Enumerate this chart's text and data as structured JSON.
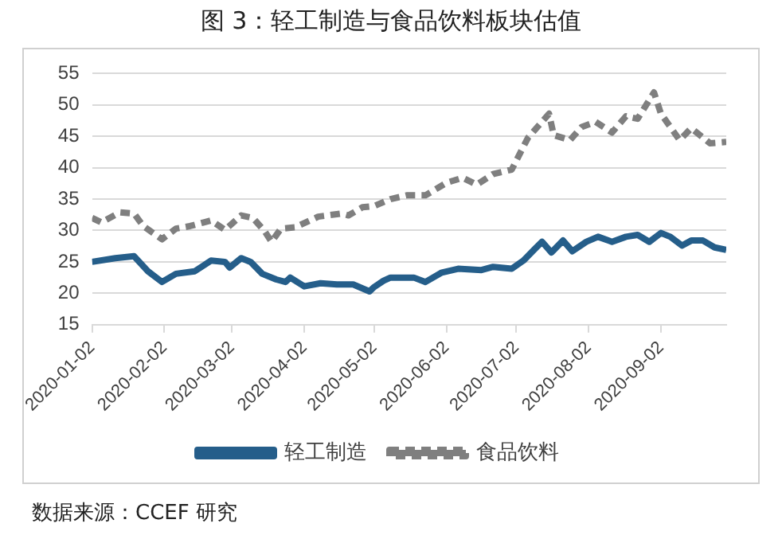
{
  "chart_data": {
    "type": "line",
    "title": "图 3：轻工制造与食品饮料板块估值",
    "xlim": [
      "2020-01-02",
      "2020-09-30"
    ],
    "xticks": [
      "2020-01-02",
      "2020-02-02",
      "2020-03-02",
      "2020-04-02",
      "2020-05-02",
      "2020-06-02",
      "2020-07-02",
      "2020-08-02",
      "2020-09-02"
    ],
    "ylim": [
      15,
      55
    ],
    "yticks": [
      15,
      20,
      25,
      30,
      35,
      40,
      45,
      50,
      55
    ],
    "grid": "y",
    "legend": "bottom",
    "marker": "none",
    "series": [
      {
        "name": "轻工制造",
        "color": "#255e8a",
        "line_style": "solid",
        "x": [
          "2020-01-02",
          "2020-01-12",
          "2020-01-20",
          "2020-01-26",
          "2020-02-01",
          "2020-02-07",
          "2020-02-15",
          "2020-02-22",
          "2020-02-28",
          "2020-03-01",
          "2020-03-06",
          "2020-03-10",
          "2020-03-15",
          "2020-03-21",
          "2020-03-25",
          "2020-03-27",
          "2020-04-02",
          "2020-04-09",
          "2020-04-16",
          "2020-04-23",
          "2020-04-30",
          "2020-05-02",
          "2020-05-06",
          "2020-05-09",
          "2020-05-19",
          "2020-05-24",
          "2020-05-31",
          "2020-06-07",
          "2020-06-17",
          "2020-06-22",
          "2020-06-30",
          "2020-07-05",
          "2020-07-10",
          "2020-07-13",
          "2020-07-17",
          "2020-07-22",
          "2020-07-26",
          "2020-08-01",
          "2020-08-06",
          "2020-08-12",
          "2020-08-18",
          "2020-08-23",
          "2020-08-28",
          "2020-09-02",
          "2020-09-06",
          "2020-09-11",
          "2020-09-15",
          "2020-09-20",
          "2020-09-25",
          "2020-09-30"
        ],
        "values": [
          25.0,
          25.6,
          25.9,
          23.5,
          21.8,
          23.1,
          23.5,
          25.2,
          25.0,
          24.1,
          25.6,
          25.0,
          23.1,
          22.2,
          21.8,
          22.5,
          21.1,
          21.6,
          21.4,
          21.4,
          20.3,
          21.0,
          22.0,
          22.5,
          22.5,
          21.8,
          23.3,
          23.9,
          23.7,
          24.2,
          23.9,
          25.2,
          27.1,
          28.2,
          26.5,
          28.4,
          26.7,
          28.2,
          29.0,
          28.2,
          29.0,
          29.3,
          28.2,
          29.6,
          29.0,
          27.6,
          28.4,
          28.4,
          27.3,
          26.9
        ]
      },
      {
        "name": "食品饮料",
        "color": "#7f7f7f",
        "line_style": "dashed",
        "x": [
          "2020-01-02",
          "2020-01-06",
          "2020-01-14",
          "2020-01-20",
          "2020-01-24",
          "2020-02-01",
          "2020-02-07",
          "2020-02-13",
          "2020-02-22",
          "2020-02-28",
          "2020-03-06",
          "2020-03-11",
          "2020-03-16",
          "2020-03-19",
          "2020-03-23",
          "2020-03-29",
          "2020-04-08",
          "2020-04-18",
          "2020-04-21",
          "2020-04-27",
          "2020-05-02",
          "2020-05-09",
          "2020-05-16",
          "2020-05-24",
          "2020-06-02",
          "2020-06-09",
          "2020-06-15",
          "2020-06-22",
          "2020-06-30",
          "2020-07-07",
          "2020-07-16",
          "2020-07-18",
          "2020-07-25",
          "2020-07-30",
          "2020-08-05",
          "2020-08-12",
          "2020-08-18",
          "2020-08-23",
          "2020-08-30",
          "2020-09-02",
          "2020-09-10",
          "2020-09-15",
          "2020-09-23",
          "2020-09-30"
        ],
        "values": [
          32.0,
          31.3,
          32.9,
          32.7,
          30.7,
          28.6,
          30.3,
          30.7,
          31.6,
          30.1,
          32.4,
          32.0,
          29.9,
          28.2,
          30.3,
          30.5,
          32.2,
          32.7,
          32.4,
          33.7,
          33.9,
          35.0,
          35.6,
          35.6,
          37.6,
          38.4,
          37.3,
          39.0,
          39.7,
          44.8,
          48.6,
          45.2,
          44.4,
          46.5,
          47.3,
          45.6,
          48.2,
          47.8,
          52.0,
          48.6,
          44.4,
          46.3,
          43.9,
          44.1
        ]
      }
    ],
    "annotations": [
      "数据来源：CCEF 研究"
    ]
  }
}
